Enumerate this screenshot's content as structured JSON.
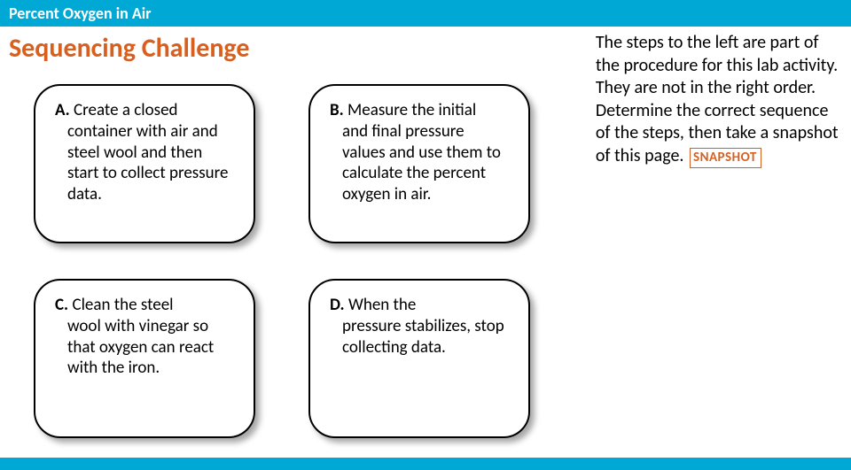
{
  "header": {
    "title": "Percent Oxygen in Air"
  },
  "challenge": {
    "title": "Sequencing Challenge"
  },
  "cards": {
    "a": {
      "letter": "A.",
      "first": "Create a closed",
      "rest": "container with air and steel wool and then start to collect pressure data."
    },
    "b": {
      "letter": "B.",
      "first": "Measure the initial",
      "rest": "and final pressure values and use them to calculate the percent oxygen in air."
    },
    "c": {
      "letter": "C.",
      "first": "Clean the steel",
      "rest": "wool with vinegar so that oxygen can react with the iron."
    },
    "d": {
      "letter": "D.",
      "first": "When the",
      "rest": "pressure stabilizes, stop collecting data."
    }
  },
  "instructions": {
    "text": "The steps to the left are part of the procedure for this lab activity. They are not in the right order. Determine the correct sequence of the steps, then take a snapshot of this page.",
    "snapshot_label": "SNAPSHOT"
  },
  "colors": {
    "brand_blue": "#00a8d6",
    "accent_orange": "#d95f1e",
    "card_border": "#000000",
    "white": "#ffffff"
  }
}
